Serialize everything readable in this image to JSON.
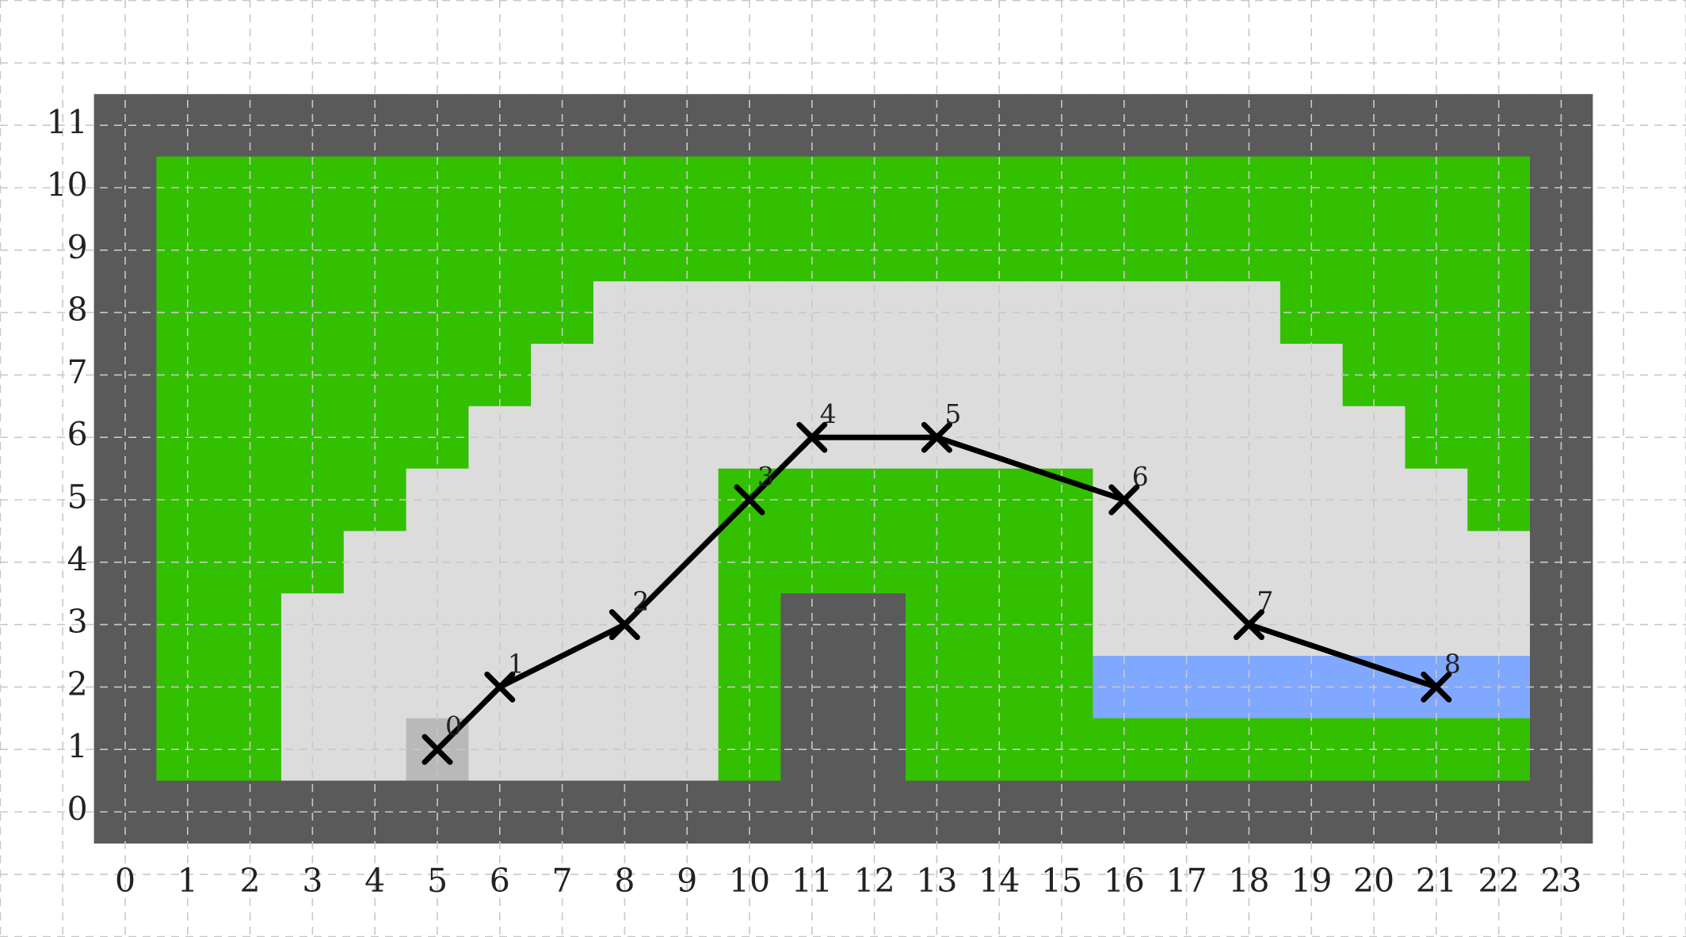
{
  "colors": {
    "wall": "#5a5a5a",
    "grass": "#33c000",
    "floor": "#dcdcdc",
    "start": "#b9b9b9",
    "water": "#80a8ff",
    "path": "#000000",
    "gridline": "#c8c8c8"
  },
  "axes": {
    "x_ticks": [
      "0",
      "1",
      "2",
      "3",
      "4",
      "5",
      "6",
      "7",
      "8",
      "9",
      "10",
      "11",
      "12",
      "13",
      "14",
      "15",
      "16",
      "17",
      "18",
      "19",
      "20",
      "21",
      "22",
      "23"
    ],
    "y_ticks": [
      "0",
      "1",
      "2",
      "3",
      "4",
      "5",
      "6",
      "7",
      "8",
      "9",
      "10",
      "11"
    ],
    "grid": true
  },
  "map": {
    "cols": 24,
    "rows": 12,
    "legend": "W = wall, G = grass, F = floor, S = start cell, B = water",
    "rows_top_to_bottom": [
      "WWWWWWWWWWWWWWWWWWWWWWWW",
      "WGGGGGGGGGGGGGGGGGGGGGGW",
      "WGGGGGGGGGGGGGGGGGGGGGGW",
      "WGGGGGGGFFFFFFFFFFFGGGGW",
      "WGGGGGGFFFFFFFFFFFFFGGGW",
      "WGGGGGFFFFFFFFFFFFFFFGGW",
      "WGGGGFFFFFGGGGGGFFFFFFGW",
      "WGGGFFFFFFGGGGGGFFFFFFFW",
      "WGGFFFFFFFGWWGGGFFFFFFFW",
      "WGGFFFFFFFGWWGGGBBBBBBBW",
      "WGGFFSFFFFGWWGGGGGGGGGGW",
      "WWWWWWWWWWWWWWWWWWWWWWWW"
    ]
  },
  "path": {
    "waypoints": [
      {
        "label": "0",
        "x": 5,
        "y": 1
      },
      {
        "label": "1",
        "x": 6,
        "y": 2
      },
      {
        "label": "2",
        "x": 8,
        "y": 3
      },
      {
        "label": "3",
        "x": 10,
        "y": 5
      },
      {
        "label": "4",
        "x": 11,
        "y": 6
      },
      {
        "label": "5",
        "x": 13,
        "y": 6
      },
      {
        "label": "6",
        "x": 16,
        "y": 5
      },
      {
        "label": "7",
        "x": 18,
        "y": 3
      },
      {
        "label": "8",
        "x": 21,
        "y": 2
      }
    ]
  }
}
